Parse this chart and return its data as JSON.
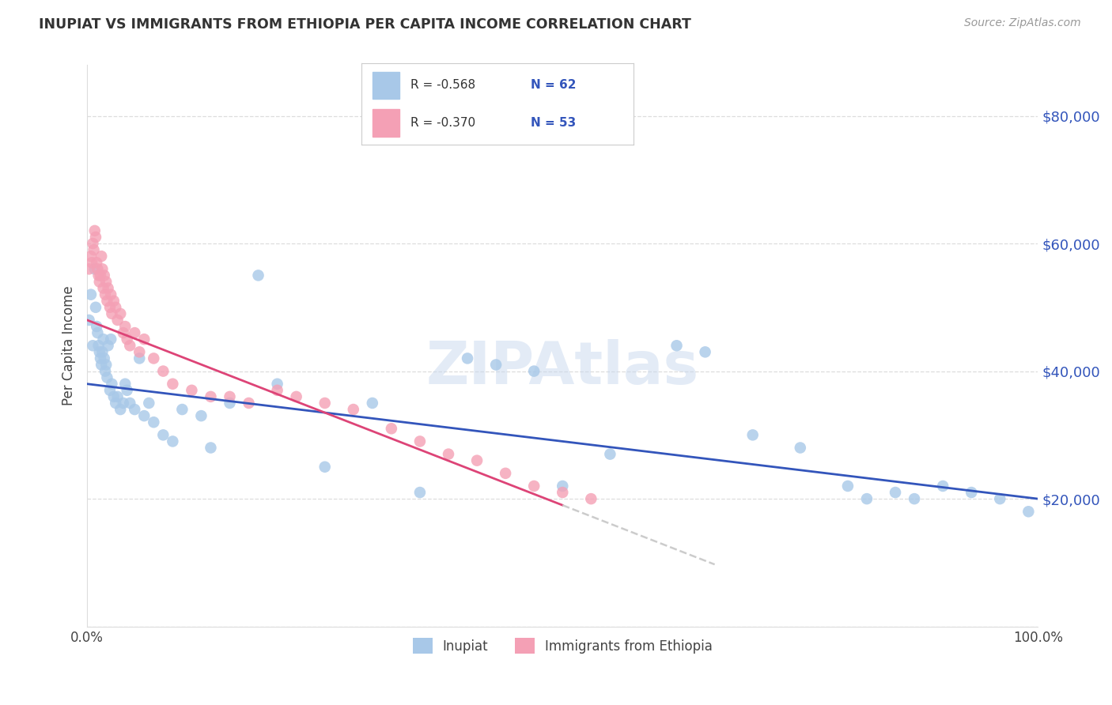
{
  "title": "INUPIAT VS IMMIGRANTS FROM ETHIOPIA PER CAPITA INCOME CORRELATION CHART",
  "source": "Source: ZipAtlas.com",
  "ylabel": "Per Capita Income",
  "watermark": "ZIPAtlas",
  "legend_r1": "-0.568",
  "legend_n1": "62",
  "legend_r2": "-0.370",
  "legend_n2": "53",
  "legend_label1": "Inupiat",
  "legend_label2": "Immigrants from Ethiopia",
  "yticks": [
    0,
    20000,
    40000,
    60000,
    80000
  ],
  "color_blue": "#a8c8e8",
  "color_pink": "#f4a0b5",
  "line_blue": "#3355bb",
  "line_pink": "#dd4477",
  "line_dashed_color": "#cccccc",
  "blue_intercept": 38000,
  "blue_slope": -18000,
  "pink_intercept": 48000,
  "pink_slope": -58000,
  "inupiat_x": [
    0.002,
    0.004,
    0.006,
    0.008,
    0.009,
    0.01,
    0.011,
    0.012,
    0.013,
    0.014,
    0.015,
    0.016,
    0.017,
    0.018,
    0.019,
    0.02,
    0.021,
    0.022,
    0.024,
    0.025,
    0.026,
    0.028,
    0.03,
    0.032,
    0.035,
    0.038,
    0.04,
    0.042,
    0.045,
    0.05,
    0.055,
    0.06,
    0.065,
    0.07,
    0.08,
    0.09,
    0.1,
    0.12,
    0.13,
    0.15,
    0.18,
    0.2,
    0.25,
    0.3,
    0.35,
    0.4,
    0.43,
    0.47,
    0.5,
    0.55,
    0.62,
    0.65,
    0.7,
    0.75,
    0.8,
    0.82,
    0.85,
    0.87,
    0.9,
    0.93,
    0.96,
    0.99
  ],
  "inupiat_y": [
    48000,
    52000,
    44000,
    56000,
    50000,
    47000,
    46000,
    44000,
    43000,
    42000,
    41000,
    43000,
    45000,
    42000,
    40000,
    41000,
    39000,
    44000,
    37000,
    45000,
    38000,
    36000,
    35000,
    36000,
    34000,
    35000,
    38000,
    37000,
    35000,
    34000,
    42000,
    33000,
    35000,
    32000,
    30000,
    29000,
    34000,
    33000,
    28000,
    35000,
    55000,
    38000,
    25000,
    35000,
    21000,
    42000,
    41000,
    40000,
    22000,
    27000,
    44000,
    43000,
    30000,
    28000,
    22000,
    20000,
    21000,
    20000,
    22000,
    21000,
    20000,
    18000
  ],
  "ethiopia_x": [
    0.002,
    0.004,
    0.005,
    0.006,
    0.007,
    0.008,
    0.009,
    0.01,
    0.011,
    0.012,
    0.013,
    0.014,
    0.015,
    0.016,
    0.017,
    0.018,
    0.019,
    0.02,
    0.021,
    0.022,
    0.024,
    0.025,
    0.026,
    0.028,
    0.03,
    0.032,
    0.035,
    0.038,
    0.04,
    0.042,
    0.045,
    0.05,
    0.055,
    0.06,
    0.07,
    0.08,
    0.09,
    0.11,
    0.13,
    0.15,
    0.17,
    0.2,
    0.22,
    0.25,
    0.28,
    0.32,
    0.35,
    0.38,
    0.41,
    0.44,
    0.47,
    0.5,
    0.53
  ],
  "ethiopia_y": [
    56000,
    58000,
    57000,
    60000,
    59000,
    62000,
    61000,
    57000,
    56000,
    55000,
    54000,
    55000,
    58000,
    56000,
    53000,
    55000,
    52000,
    54000,
    51000,
    53000,
    50000,
    52000,
    49000,
    51000,
    50000,
    48000,
    49000,
    46000,
    47000,
    45000,
    44000,
    46000,
    43000,
    45000,
    42000,
    40000,
    38000,
    37000,
    36000,
    36000,
    35000,
    37000,
    36000,
    35000,
    34000,
    31000,
    29000,
    27000,
    26000,
    24000,
    22000,
    21000,
    20000
  ]
}
